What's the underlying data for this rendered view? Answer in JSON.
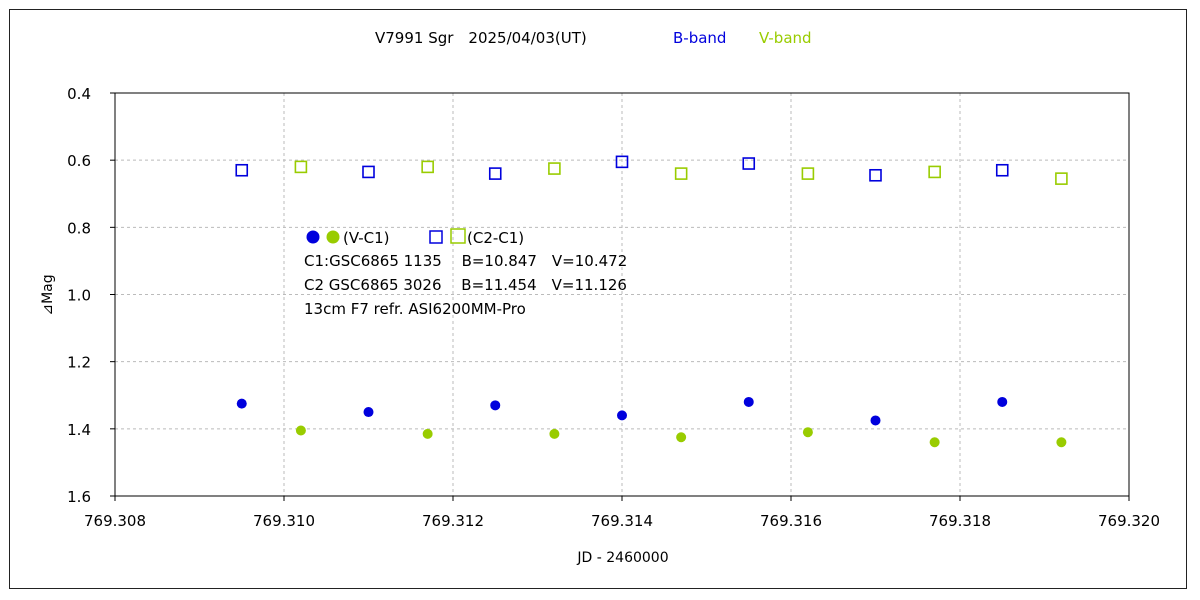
{
  "chart_data": {
    "type": "scatter",
    "title": "V7991 Sgr　2025/04/03(UT)",
    "band_labels": [
      {
        "text": "B-band",
        "color": "#0000dd"
      },
      {
        "text": "V-band",
        "color": "#99cc00"
      }
    ],
    "xlabel": "JD - 2460000",
    "ylabel": "⊿Mag",
    "xlim": [
      769.308,
      769.32
    ],
    "ylim": [
      0.4,
      1.6
    ],
    "y_inverted": true,
    "x_ticks": [
      "769.308",
      "769.310",
      "769.312",
      "769.314",
      "769.316",
      "769.318",
      "769.320"
    ],
    "y_ticks": [
      "0.4",
      "0.6",
      "0.8",
      "1.0",
      "1.2",
      "1.4",
      "1.6"
    ],
    "grid": true,
    "series": [
      {
        "name": "B (V-C1)",
        "marker": "filled-circle",
        "color": "#0000dd",
        "x": [
          769.3095,
          769.311,
          769.3125,
          769.314,
          769.3155,
          769.317,
          769.3185
        ],
        "y": [
          1.325,
          1.35,
          1.33,
          1.36,
          1.32,
          1.375,
          1.32
        ]
      },
      {
        "name": "V (V-C1)",
        "marker": "filled-circle",
        "color": "#99cc00",
        "x": [
          769.3102,
          769.3117,
          769.3132,
          769.3147,
          769.3162,
          769.3177,
          769.3192
        ],
        "y": [
          1.405,
          1.415,
          1.415,
          1.425,
          1.41,
          1.44,
          1.44
        ]
      },
      {
        "name": "B (C2-C1)",
        "marker": "open-square",
        "color": "#0000dd",
        "x": [
          769.3095,
          769.311,
          769.3125,
          769.314,
          769.3155,
          769.317,
          769.3185
        ],
        "y": [
          0.63,
          0.635,
          0.64,
          0.605,
          0.61,
          0.645,
          0.63
        ]
      },
      {
        "name": "V (C2-C1)",
        "marker": "open-square",
        "color": "#99cc00",
        "x": [
          769.3102,
          769.3117,
          769.3132,
          769.3147,
          769.3162,
          769.3177,
          769.3192
        ],
        "y": [
          0.62,
          0.62,
          0.625,
          0.64,
          0.64,
          0.635,
          0.655
        ]
      }
    ],
    "legend": {
      "placement": "inside-left",
      "line1_text_a": "(V-C1)",
      "line1_text_b": "(C2-C1)",
      "info_lines": [
        "C1:GSC6865 1135　 B=10.847　V=10.472",
        "C2 GSC6865 3026　 B=11.454　V=11.126",
        "13cm  F7  refr.   ASI6200MM-Pro"
      ]
    }
  }
}
